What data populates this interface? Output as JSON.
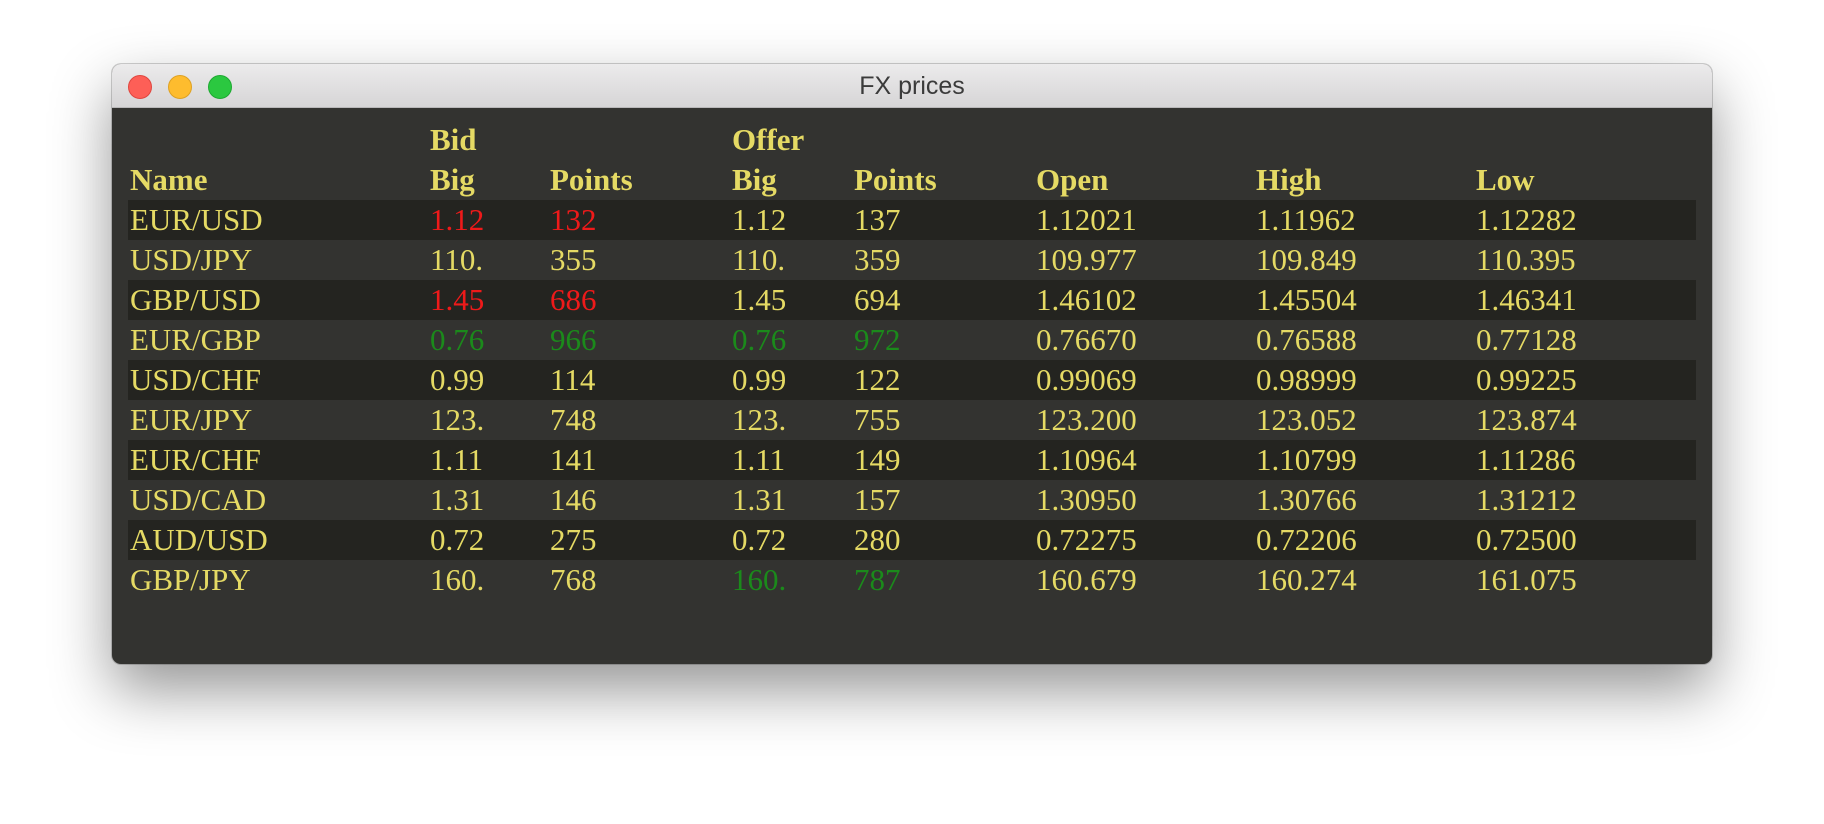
{
  "window": {
    "title": "FX prices"
  },
  "table": {
    "group_headers": {
      "bid": "Bid",
      "offer": "Offer"
    },
    "columns": {
      "name": "Name",
      "bid_big": "Big",
      "bid_points": "Points",
      "offer_big": "Big",
      "offer_points": "Points",
      "open": "Open",
      "high": "High",
      "low": "Low"
    },
    "rows": [
      {
        "name": "EUR/USD",
        "bid_big": "1.12",
        "bid_points": "132",
        "offer_big": "1.12",
        "offer_points": "137",
        "open": "1.12021",
        "high": "1.11962",
        "low": "1.12282",
        "bid_trend": "down",
        "offer_trend": "none"
      },
      {
        "name": "USD/JPY",
        "bid_big": "110.",
        "bid_points": "355",
        "offer_big": "110.",
        "offer_points": "359",
        "open": "109.977",
        "high": "109.849",
        "low": "110.395",
        "bid_trend": "none",
        "offer_trend": "none"
      },
      {
        "name": "GBP/USD",
        "bid_big": "1.45",
        "bid_points": "686",
        "offer_big": "1.45",
        "offer_points": "694",
        "open": "1.46102",
        "high": "1.45504",
        "low": "1.46341",
        "bid_trend": "down",
        "offer_trend": "none"
      },
      {
        "name": "EUR/GBP",
        "bid_big": "0.76",
        "bid_points": "966",
        "offer_big": "0.76",
        "offer_points": "972",
        "open": "0.76670",
        "high": "0.76588",
        "low": "0.77128",
        "bid_trend": "up",
        "offer_trend": "up"
      },
      {
        "name": "USD/CHF",
        "bid_big": "0.99",
        "bid_points": "114",
        "offer_big": "0.99",
        "offer_points": "122",
        "open": "0.99069",
        "high": "0.98999",
        "low": "0.99225",
        "bid_trend": "none",
        "offer_trend": "none"
      },
      {
        "name": "EUR/JPY",
        "bid_big": "123.",
        "bid_points": "748",
        "offer_big": "123.",
        "offer_points": "755",
        "open": "123.200",
        "high": "123.052",
        "low": "123.874",
        "bid_trend": "none",
        "offer_trend": "none"
      },
      {
        "name": "EUR/CHF",
        "bid_big": "1.11",
        "bid_points": "141",
        "offer_big": "1.11",
        "offer_points": "149",
        "open": "1.10964",
        "high": "1.10799",
        "low": "1.11286",
        "bid_trend": "none",
        "offer_trend": "none"
      },
      {
        "name": "USD/CAD",
        "bid_big": "1.31",
        "bid_points": "146",
        "offer_big": "1.31",
        "offer_points": "157",
        "open": "1.30950",
        "high": "1.30766",
        "low": "1.31212",
        "bid_trend": "none",
        "offer_trend": "none"
      },
      {
        "name": "AUD/USD",
        "bid_big": "0.72",
        "bid_points": "275",
        "offer_big": "0.72",
        "offer_points": "280",
        "open": "0.72275",
        "high": "0.72206",
        "low": "0.72500",
        "bid_trend": "none",
        "offer_trend": "none"
      },
      {
        "name": "GBP/JPY",
        "bid_big": "160.",
        "bid_points": "768",
        "offer_big": "160.",
        "offer_points": "787",
        "open": "160.679",
        "high": "160.274",
        "low": "161.075",
        "bid_trend": "none",
        "offer_trend": "up"
      }
    ]
  },
  "colors": {
    "text": "#e5da64",
    "down": "#ee1a1a",
    "up": "#1b8a1b",
    "background": "#333330",
    "row_alt": "#242420"
  },
  "icons": {
    "close": "close-icon",
    "minimize": "minimize-icon",
    "zoom": "zoom-icon"
  }
}
